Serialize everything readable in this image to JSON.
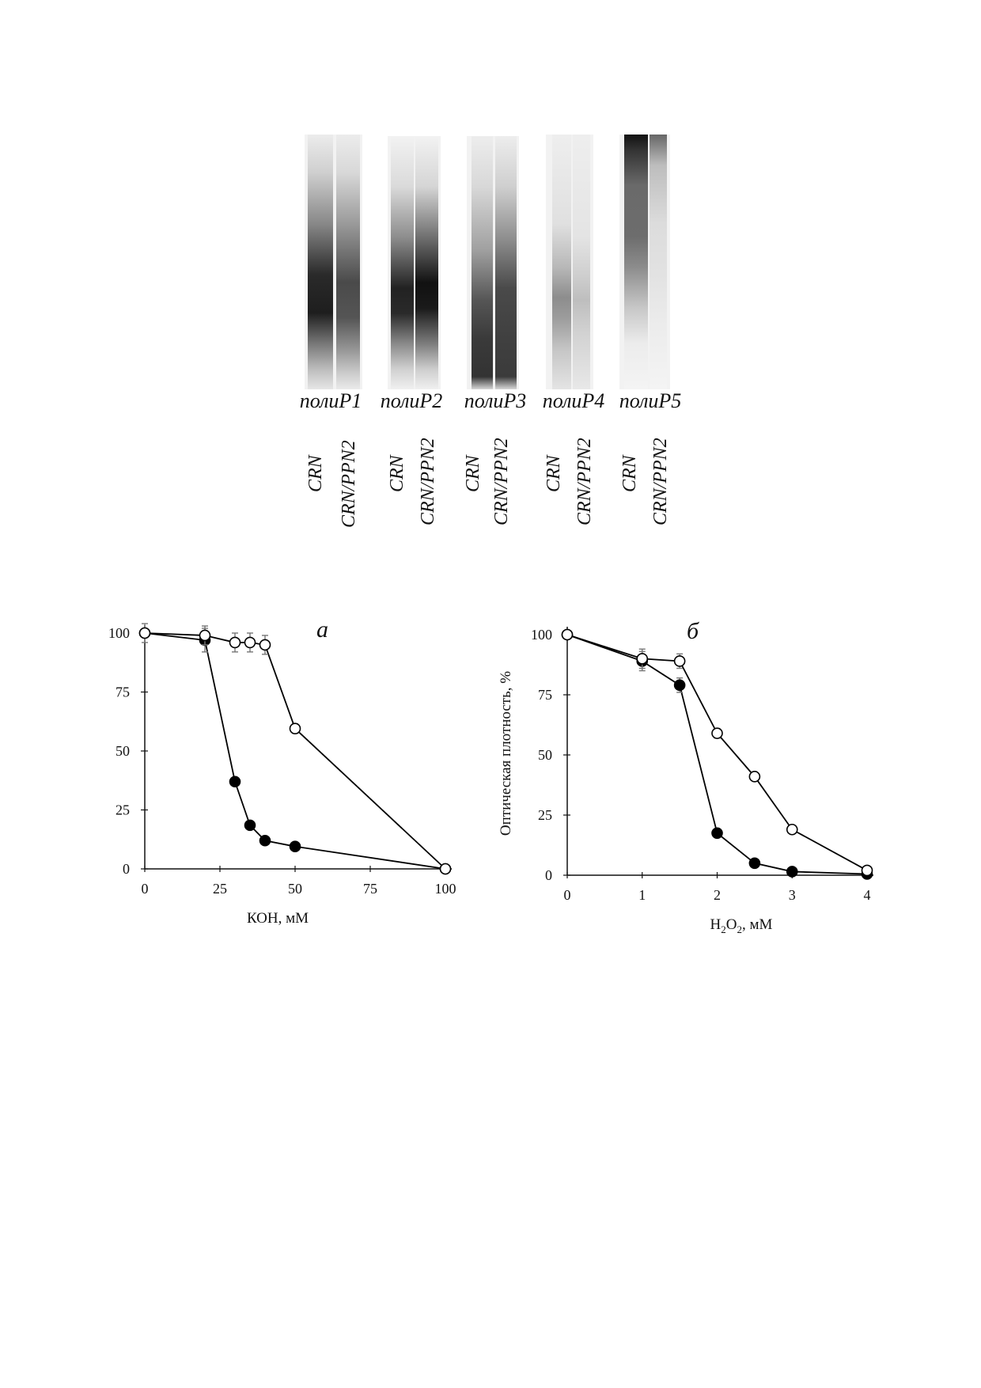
{
  "gels": [
    {
      "name": "полиP1",
      "lanes": [
        "CRN",
        "CRN/PPN2"
      ]
    },
    {
      "name": "полиP2",
      "lanes": [
        "CRN",
        "CRN/PPN2"
      ]
    },
    {
      "name": "полиP3",
      "lanes": [
        "CRN",
        "CRN/PPN2"
      ]
    },
    {
      "name": "полиP4",
      "lanes": [
        "CRN",
        "CRN/PPN2"
      ]
    },
    {
      "name": "полиP5",
      "lanes": [
        "CRN",
        "CRN/PPN2"
      ]
    }
  ],
  "panels": {
    "a": {
      "letter": "а"
    },
    "b": {
      "letter": "б",
      "xlabel_main": "H",
      "sub1": "2",
      "xlabel_mid": "O",
      "sub2": "2",
      "xlabel_end": ", мМ"
    }
  },
  "chart_data": [
    {
      "type": "line",
      "panel": "а",
      "xlabel": "КОН, мМ",
      "ylabel": "",
      "xlim": [
        0,
        100
      ],
      "ylim": [
        0,
        100
      ],
      "xticks": [
        0,
        25,
        50,
        75,
        100
      ],
      "yticks": [
        0,
        25,
        50,
        75,
        100
      ],
      "grid": false,
      "series": [
        {
          "marker": "filled-circle",
          "color": "#000000",
          "x": [
            0,
            20,
            30,
            35,
            40,
            50,
            100
          ],
          "y": [
            100,
            97,
            37,
            18.5,
            12,
            9.5,
            0
          ],
          "err": [
            0,
            5,
            0,
            0,
            0,
            0,
            0
          ]
        },
        {
          "marker": "open-circle",
          "color": "#000000",
          "x": [
            0,
            20,
            30,
            35,
            40,
            50,
            100
          ],
          "y": [
            100,
            99,
            96,
            96,
            95,
            59.5,
            0
          ],
          "err": [
            4,
            4,
            4,
            4,
            4,
            2,
            0
          ]
        }
      ]
    },
    {
      "type": "line",
      "panel": "б",
      "xlabel": "H2O2, мМ",
      "ylabel": "Оптическая плотность, %",
      "xlim": [
        0,
        4
      ],
      "ylim": [
        0,
        100
      ],
      "xticks": [
        0,
        1,
        2,
        3,
        4
      ],
      "yticks": [
        0,
        25,
        50,
        75,
        100
      ],
      "grid": false,
      "series": [
        {
          "marker": "filled-circle",
          "color": "#000000",
          "x": [
            0,
            1,
            1.5,
            2,
            2.5,
            3,
            4
          ],
          "y": [
            100,
            89,
            79,
            17.5,
            5,
            1.5,
            0.5
          ],
          "err": [
            0,
            4,
            3,
            0,
            0,
            0,
            0
          ]
        },
        {
          "marker": "open-circle",
          "color": "#000000",
          "x": [
            0,
            1,
            1.5,
            2,
            2.5,
            3,
            4
          ],
          "y": [
            100,
            90,
            89,
            59,
            41,
            19,
            2
          ],
          "err": [
            0,
            4,
            3,
            2,
            0,
            0,
            0
          ]
        }
      ]
    }
  ]
}
